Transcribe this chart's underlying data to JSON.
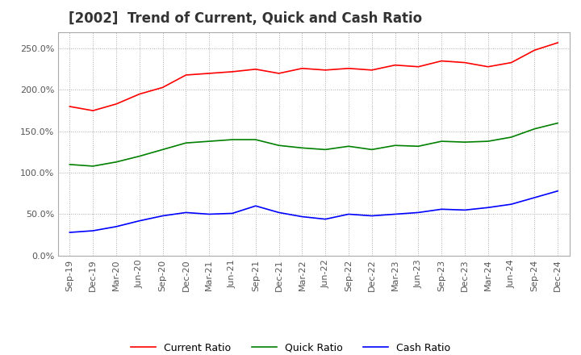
{
  "title": "[2002]  Trend of Current, Quick and Cash Ratio",
  "x_labels": [
    "Sep-19",
    "Dec-19",
    "Mar-20",
    "Jun-20",
    "Sep-20",
    "Dec-20",
    "Mar-21",
    "Jun-21",
    "Sep-21",
    "Dec-21",
    "Mar-22",
    "Jun-22",
    "Sep-22",
    "Dec-22",
    "Mar-23",
    "Jun-23",
    "Sep-23",
    "Dec-23",
    "Mar-24",
    "Jun-24",
    "Sep-24",
    "Dec-24"
  ],
  "current_ratio": [
    180,
    175,
    183,
    195,
    203,
    218,
    220,
    222,
    225,
    220,
    226,
    224,
    226,
    224,
    230,
    228,
    235,
    233,
    228,
    233,
    248,
    257
  ],
  "quick_ratio": [
    110,
    108,
    113,
    120,
    128,
    136,
    138,
    140,
    140,
    133,
    130,
    128,
    132,
    128,
    133,
    132,
    138,
    137,
    138,
    143,
    153,
    160
  ],
  "cash_ratio": [
    28,
    30,
    35,
    42,
    48,
    52,
    50,
    51,
    60,
    52,
    47,
    44,
    50,
    48,
    50,
    52,
    56,
    55,
    58,
    62,
    70,
    78
  ],
  "current_color": "#ff0000",
  "quick_color": "#008000",
  "cash_color": "#0000ff",
  "ylim": [
    0,
    270
  ],
  "yticks": [
    0,
    50,
    100,
    150,
    200,
    250
  ],
  "background_color": "#ffffff",
  "grid_color": "#aaaaaa",
  "title_fontsize": 12,
  "tick_fontsize": 8,
  "legend_labels": [
    "Current Ratio",
    "Quick Ratio",
    "Cash Ratio"
  ],
  "legend_fontsize": 9
}
